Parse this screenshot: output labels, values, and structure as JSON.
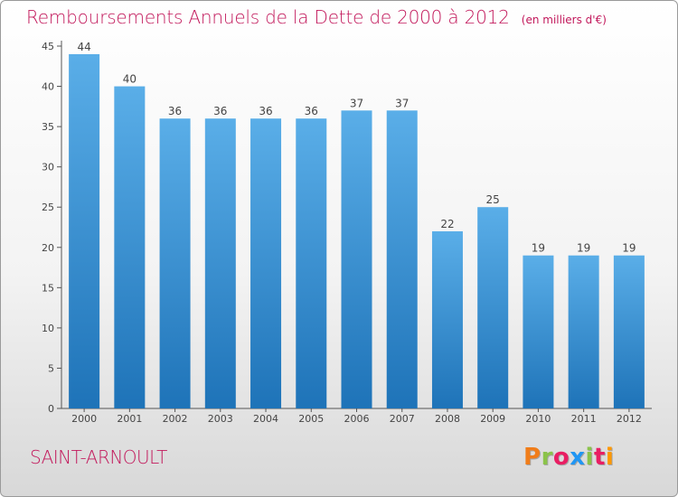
{
  "header": {
    "title": "Remboursements Annuels de la Dette de 2000 à 2012",
    "subtitle": "(en milliers d'€)"
  },
  "footer": {
    "commune": "SAINT-ARNOULT",
    "logo": "Proxiti",
    "logo_colors": [
      "#f07d1a",
      "#8bc34a",
      "#e91e63",
      "#2196f3",
      "#8bc34a",
      "#e91e63",
      "#ff9800"
    ]
  },
  "chart_data": {
    "type": "bar",
    "categories": [
      "2000",
      "2001",
      "2002",
      "2003",
      "2004",
      "2005",
      "2006",
      "2007",
      "2008",
      "2009",
      "2010",
      "2011",
      "2012"
    ],
    "values": [
      44,
      40,
      36,
      36,
      36,
      36,
      37,
      37,
      22,
      25,
      19,
      19,
      19
    ],
    "ylim": [
      0,
      45
    ],
    "yticks": [
      0,
      5,
      10,
      15,
      20,
      25,
      30,
      35,
      40,
      45
    ],
    "bar_color_top": "#5aaee8",
    "bar_color_bottom": "#1e73b8",
    "grid": false
  }
}
